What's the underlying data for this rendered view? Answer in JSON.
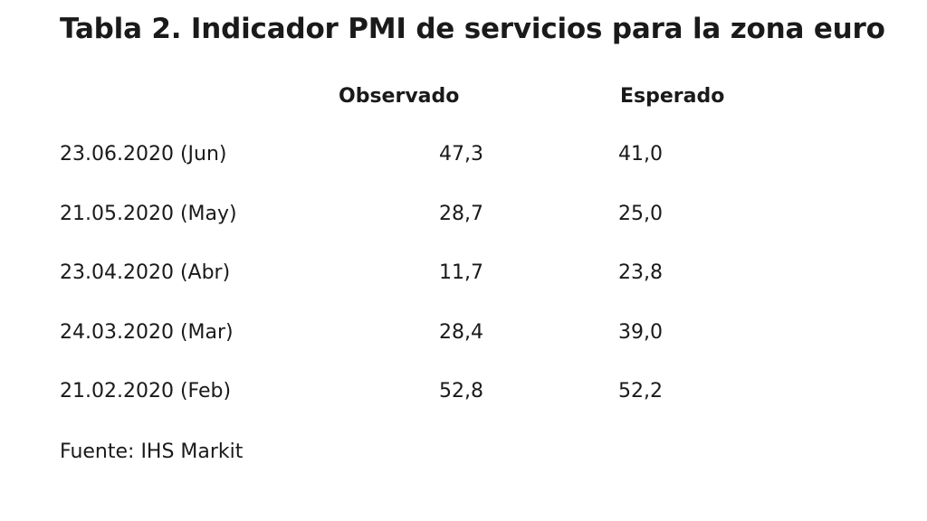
{
  "chart_data": {
    "type": "table",
    "title": "Tabla 2. Indicador PMI de servicios para la zona euro",
    "columns": [
      "",
      "Observado",
      "Esperado"
    ],
    "rows": [
      {
        "date": "23.06.2020 (Jun)",
        "observado": "47,3",
        "esperado": "41,0"
      },
      {
        "date": "21.05.2020 (May)",
        "observado": "28,7",
        "esperado": "25,0"
      },
      {
        "date": "23.04.2020 (Abr)",
        "observado": "11,7",
        "esperado": "23,8"
      },
      {
        "date": "24.03.2020 (Mar)",
        "observado": "28,4",
        "esperado": "39,0"
      },
      {
        "date": "21.02.2020 (Feb)",
        "observado": "52,8",
        "esperado": "52,2"
      }
    ],
    "source": "Fuente: IHS Markit"
  }
}
